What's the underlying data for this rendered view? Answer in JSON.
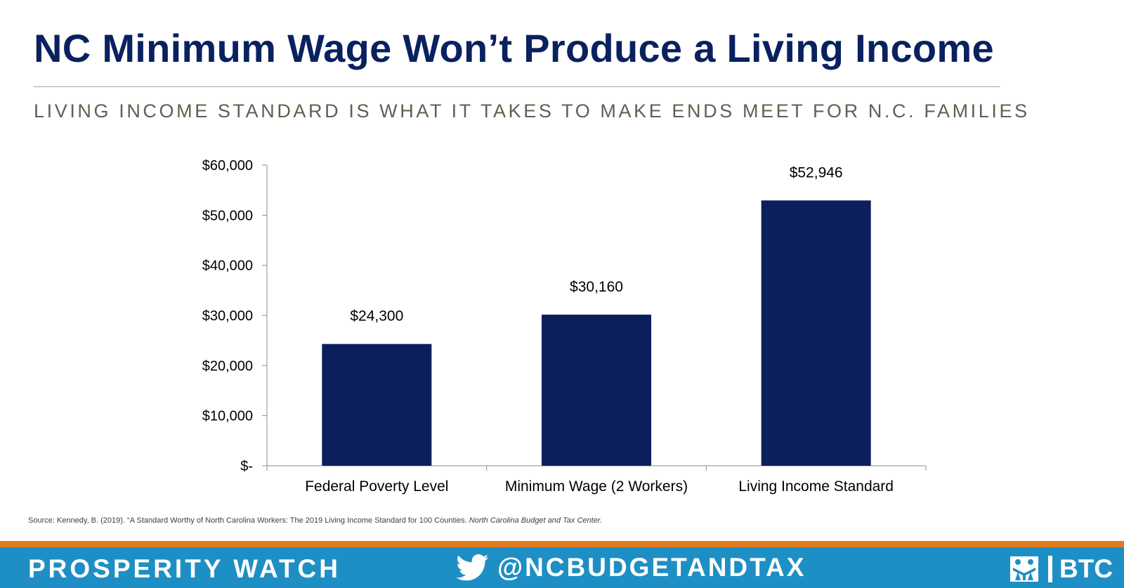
{
  "header": {
    "title": "NC Minimum Wage Won’t Produce a Living Income",
    "subtitle": "LIVING INCOME STANDARD IS WHAT IT TAKES TO MAKE ENDS MEET FOR N.C. FAMILIES"
  },
  "chart_data": {
    "type": "bar",
    "categories": [
      "Federal Poverty Level",
      "Minimum Wage (2 Workers)",
      "Living Income Standard"
    ],
    "values": [
      24300,
      30160,
      52946
    ],
    "data_labels": [
      "$24,300",
      "$30,160",
      "$52,946"
    ],
    "yticks": [
      0,
      10000,
      20000,
      30000,
      40000,
      50000,
      60000
    ],
    "ytick_labels": [
      "$-",
      "$10,000",
      "$20,000",
      "$30,000",
      "$40,000",
      "$50,000",
      "$60,000"
    ],
    "ylim": [
      0,
      60000
    ],
    "grid": false,
    "legend": "none",
    "bar_color": "#0a1f5c"
  },
  "source": {
    "text": "Source: Kennedy, B. (2019). “A Standard Worthy of North Carolina Workers: The 2019 Living Income Standard for 100 Counties.",
    "publisher": "North Carolina Budget and Tax Center."
  },
  "footer": {
    "left_label": "PROSPERITY WATCH",
    "twitter_handle": "@NCBUDGETANDTAX",
    "logo_text": "BTC",
    "twitter_icon": "twitter-bird-icon",
    "logo_icon": "btc-logo-icon",
    "accent_orange": "#e07b20",
    "footer_blue": "#1e8fc4"
  }
}
